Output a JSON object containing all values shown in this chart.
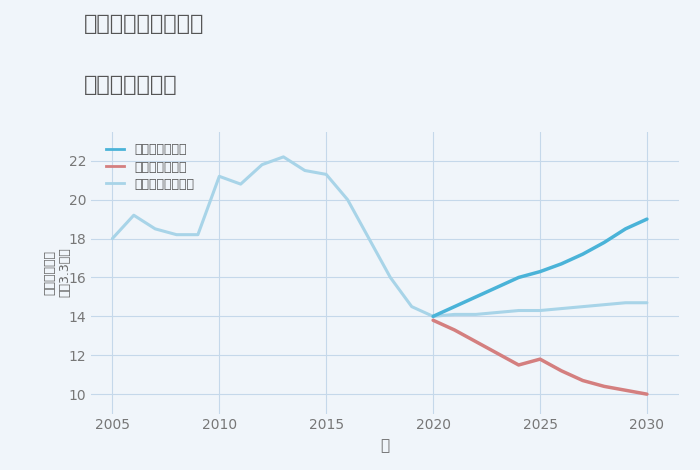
{
  "title_line1": "埼玉県行田市谷郷の",
  "title_line2": "土地の価格推移",
  "xlabel": "年",
  "ylabel_top": "単価（万円）",
  "ylabel_bottom": "平（3.3㎡）",
  "background_color": "#f0f5fa",
  "plot_bg_color": "#f0f5fa",
  "grid_color": "#c5d8ea",
  "ylim": [
    9.0,
    23.5
  ],
  "yticks": [
    10,
    12,
    14,
    16,
    18,
    20,
    22
  ],
  "xlim": [
    2004.0,
    2031.5
  ],
  "xticks": [
    2005,
    2010,
    2015,
    2020,
    2025,
    2030
  ],
  "legend_labels": [
    "グッドシナリオ",
    "バッドシナリオ",
    "ノーマルシナリオ"
  ],
  "good_color": "#4ab3d8",
  "bad_color": "#d47f7f",
  "normal_color": "#a8d4e8",
  "historical_color": "#a8d4e8",
  "good_scenario": {
    "years": [
      2020,
      2021,
      2022,
      2023,
      2024,
      2025,
      2026,
      2027,
      2028,
      2029,
      2030
    ],
    "values": [
      14.0,
      14.5,
      15.0,
      15.5,
      16.0,
      16.3,
      16.7,
      17.2,
      17.8,
      18.5,
      19.0
    ]
  },
  "bad_scenario": {
    "years": [
      2020,
      2021,
      2022,
      2023,
      2024,
      2025,
      2026,
      2027,
      2028,
      2029,
      2030
    ],
    "values": [
      13.8,
      13.3,
      12.7,
      12.1,
      11.5,
      11.8,
      11.2,
      10.7,
      10.4,
      10.2,
      10.0
    ]
  },
  "normal_scenario": {
    "years": [
      2020,
      2021,
      2022,
      2023,
      2024,
      2025,
      2026,
      2027,
      2028,
      2029,
      2030
    ],
    "values": [
      14.0,
      14.1,
      14.1,
      14.2,
      14.3,
      14.3,
      14.4,
      14.5,
      14.6,
      14.7,
      14.7
    ]
  },
  "historical": {
    "years": [
      2005,
      2006,
      2007,
      2008,
      2009,
      2010,
      2011,
      2012,
      2013,
      2014,
      2015,
      2016,
      2017,
      2018,
      2019,
      2020
    ],
    "values": [
      18.0,
      19.2,
      18.5,
      18.2,
      18.2,
      21.2,
      20.8,
      21.8,
      22.2,
      21.5,
      21.3,
      20.0,
      18.0,
      16.0,
      14.5,
      14.0
    ]
  },
  "title_color": "#555555",
  "tick_color": "#777777",
  "label_color": "#666666"
}
